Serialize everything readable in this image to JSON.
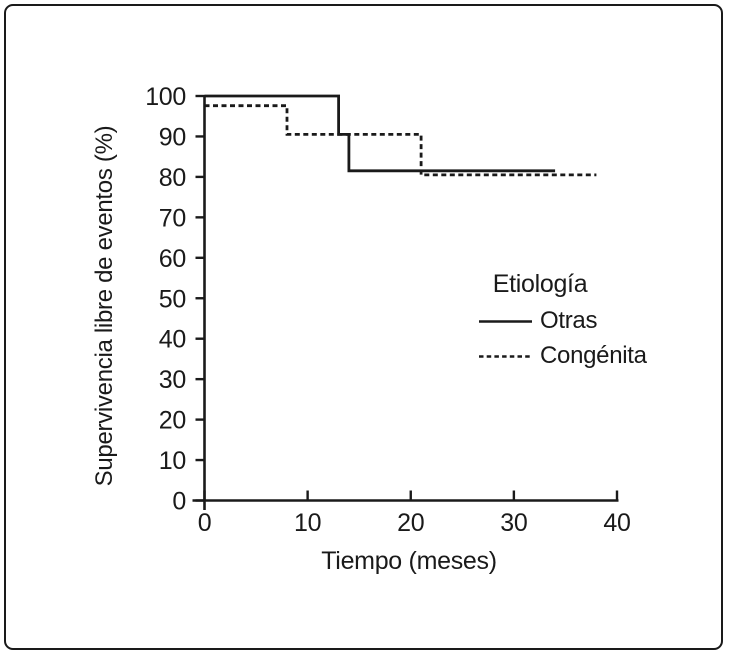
{
  "figure": {
    "background_color": "#ffffff",
    "border_color": "#1a1a1a",
    "line_color": "#1a1a1a"
  },
  "chart_data": {
    "type": "line",
    "subtype": "kaplan-meier-step",
    "title": "",
    "xlabel": "Tiempo (meses)",
    "ylabel": "Supervivencia libre de eventos (%)",
    "xlim": [
      0,
      40
    ],
    "ylim": [
      0,
      100
    ],
    "x_ticks": [
      0,
      10,
      20,
      30,
      40
    ],
    "y_ticks": [
      0,
      10,
      20,
      30,
      40,
      50,
      60,
      70,
      80,
      90,
      100
    ],
    "grid": false,
    "legend": {
      "title": "Etiología",
      "position": "middle-right",
      "items": [
        {
          "label": "Otras",
          "line_style": "solid",
          "color": "#1a1a1a"
        },
        {
          "label": "Congénita",
          "line_style": "dashed",
          "color": "#1a1a1a"
        }
      ]
    },
    "series": [
      {
        "name": "Otras",
        "line_style": "solid",
        "color": "#1a1a1a",
        "points": [
          [
            0,
            100
          ],
          [
            13,
            100
          ],
          [
            13,
            90.5
          ],
          [
            14,
            90.5
          ],
          [
            14,
            81.5
          ],
          [
            34,
            81.5
          ]
        ]
      },
      {
        "name": "Congénita",
        "line_style": "dashed",
        "color": "#1a1a1a",
        "points": [
          [
            0,
            97.6
          ],
          [
            8,
            97.6
          ],
          [
            8,
            90.5
          ],
          [
            21,
            90.5
          ],
          [
            21,
            80.5
          ],
          [
            38,
            80.5
          ]
        ]
      }
    ]
  }
}
